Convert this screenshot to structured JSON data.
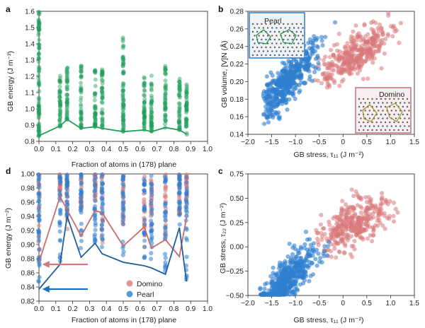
{
  "panel_labels": [
    "a",
    "b",
    "c",
    "d"
  ],
  "colors": {
    "green": "#1f9e5a",
    "blue": "#2f7fcf",
    "red": "#d9787a",
    "pearl_frame": "#2f7fcf",
    "domino_frame": "#c9707a"
  },
  "chart_data": [
    {
      "id": "a",
      "type": "scatter",
      "xlabel": "Fraction of atoms in (178) plane",
      "ylabel": "GB energy (J m⁻²)",
      "xlim": [
        0.0,
        1.0
      ],
      "ylim": [
        0.8,
        1.6
      ],
      "xticks": [
        "0.0",
        "0.1",
        "0.2",
        "0.3",
        "0.4",
        "0.5",
        "0.6",
        "0.7",
        "0.8",
        "0.9",
        "1.0"
      ],
      "yticks": [
        "0.8",
        "0.9",
        "1.0",
        "1.1",
        "1.2",
        "1.3",
        "1.4",
        "1.5",
        "1.6"
      ],
      "columns": [
        {
          "x": 0.0,
          "min": 0.83,
          "max": 1.6
        },
        {
          "x": 0.125,
          "min": 0.89,
          "max": 1.22
        },
        {
          "x": 0.167,
          "min": 0.93,
          "max": 1.28
        },
        {
          "x": 0.25,
          "min": 0.88,
          "max": 1.27
        },
        {
          "x": 0.333,
          "min": 0.89,
          "max": 1.25
        },
        {
          "x": 0.375,
          "min": 0.88,
          "max": 1.25
        },
        {
          "x": 0.5,
          "min": 0.86,
          "max": 1.45
        },
        {
          "x": 0.625,
          "min": 0.87,
          "max": 1.2
        },
        {
          "x": 0.667,
          "min": 0.86,
          "max": 1.21
        },
        {
          "x": 0.75,
          "min": 0.88,
          "max": 1.27
        },
        {
          "x": 0.833,
          "min": 0.87,
          "max": 1.19
        },
        {
          "x": 0.875,
          "min": 0.84,
          "max": 1.16
        }
      ],
      "min_line": {
        "x": [
          0.0,
          0.125,
          0.167,
          0.25,
          0.333,
          0.375,
          0.5,
          0.625,
          0.667,
          0.75,
          0.833,
          0.875
        ],
        "y": [
          0.835,
          0.895,
          0.935,
          0.88,
          0.89,
          0.88,
          0.86,
          0.87,
          0.86,
          0.885,
          0.87,
          0.845
        ]
      }
    },
    {
      "id": "b",
      "type": "scatter",
      "xlabel": "GB stress, τ₁₁ (J m⁻²)",
      "ylabel": "GB volume, [V]N (Å)",
      "xlim": [
        -2.0,
        1.5
      ],
      "ylim": [
        0.14,
        0.28
      ],
      "xticks": [
        "−2.0",
        "−1.5",
        "−1.0",
        "−0.5",
        "0",
        "0.5",
        "1.0",
        "1.5"
      ],
      "yticks": [
        "0.14",
        "0.16",
        "0.18",
        "0.20",
        "0.22",
        "0.24",
        "0.26",
        "0.28"
      ],
      "series": [
        {
          "name": "Pearl",
          "center_x": -1.1,
          "slope": 0.055,
          "intercept": 0.265,
          "x_range": [
            -1.7,
            -0.1
          ],
          "spread": 0.012
        },
        {
          "name": "Domino",
          "center_x": 0.3,
          "slope": 0.035,
          "intercept": 0.222,
          "x_range": [
            -0.6,
            1.3
          ],
          "spread": 0.011
        }
      ],
      "insets": [
        {
          "label": "Pearl",
          "position": "top-left"
        },
        {
          "label": "Domino",
          "position": "bottom-right"
        }
      ]
    },
    {
      "id": "c",
      "type": "scatter",
      "xlabel": "GB stress, τ₁₁ (J m⁻²)",
      "ylabel": "GB stress, τ₂₂ (J m⁻²)",
      "xlim": [
        -2.0,
        1.5
      ],
      "ylim": [
        -0.5,
        0.75
      ],
      "xticks": [
        "−2.0",
        "−1.5",
        "−1.0",
        "−0.5",
        "0",
        "0.5",
        "1.0",
        "1.5"
      ],
      "yticks": [
        "−0.50",
        "−0.25",
        "0.00",
        "0.25",
        "0.50",
        "0.75"
      ],
      "series": [
        {
          "name": "Pearl",
          "x_range": [
            -1.75,
            -0.15
          ],
          "slope": 0.42,
          "intercept": 0.15,
          "spread": 0.1
        },
        {
          "name": "Domino",
          "x_range": [
            -0.6,
            1.2
          ],
          "slope": 0.22,
          "intercept": 0.18,
          "spread": 0.11
        }
      ]
    },
    {
      "id": "d",
      "type": "scatter",
      "xlabel": "Fraction of atoms in (178) plane",
      "ylabel": "GB energy (J m⁻²)",
      "xlim": [
        0.0,
        1.0
      ],
      "ylim": [
        0.82,
        1.0
      ],
      "xticks": [
        "0.0",
        "0.1",
        "0.2",
        "0.3",
        "0.4",
        "0.5",
        "0.6",
        "0.7",
        "0.8",
        "0.9",
        "1.0"
      ],
      "yticks": [
        "0.82",
        "0.84",
        "0.86",
        "0.88",
        "0.90",
        "0.92",
        "0.94",
        "0.96",
        "0.98",
        "1.00"
      ],
      "legend": [
        "Domino",
        "Pearl"
      ],
      "legend_position": "bottom-right",
      "domino_line": {
        "x": [
          0.0,
          0.125,
          0.25,
          0.333,
          0.375,
          0.5,
          0.625,
          0.667,
          0.75,
          0.833,
          0.875
        ],
        "y": [
          0.875,
          0.968,
          0.912,
          0.948,
          0.945,
          0.898,
          0.925,
          0.895,
          0.907,
          0.883,
          0.938
        ]
      },
      "pearl_line": {
        "x": [
          0.0,
          0.125,
          0.167,
          0.25,
          0.333,
          0.375,
          0.5,
          0.625,
          0.667,
          0.75,
          0.833,
          0.875
        ],
        "y": [
          0.837,
          0.872,
          0.94,
          0.882,
          0.902,
          0.887,
          0.875,
          0.87,
          0.867,
          0.858,
          0.924,
          0.848
        ]
      },
      "domino_columns": [
        0.0,
        0.125,
        0.167,
        0.25,
        0.333,
        0.375,
        0.5,
        0.625,
        0.667,
        0.75,
        0.833,
        0.875
      ],
      "pearl_columns": [
        0.0,
        0.125,
        0.167,
        0.25,
        0.333,
        0.375,
        0.5,
        0.625,
        0.667,
        0.75,
        0.833,
        0.875
      ],
      "arrows": [
        {
          "color": "red",
          "y": 0.872
        },
        {
          "color": "blue",
          "y": 0.837
        }
      ]
    }
  ]
}
